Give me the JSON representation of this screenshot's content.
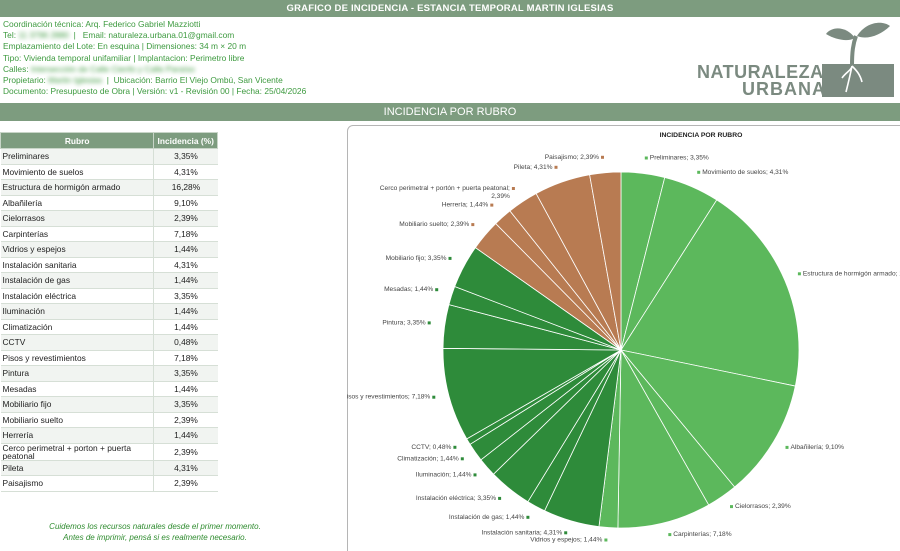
{
  "header": {
    "title": "GRAFICO DE INCIDENCIA - ESTANCIA TEMPORAL MARTIN IGLESIAS",
    "section_title": "INCIDENCIA POR RUBRO"
  },
  "info": {
    "coordinacion": "Coordinación técnica: Arq. Federico Gabriel Mazziotti",
    "tel_label": "Tel:",
    "tel_value": "11 3796 2880",
    "email": "Email: naturaleza.urbana.01@gmail.com",
    "emplazamiento": "Emplazamiento del Lote: En esquina  |  Dimensiones: 34 m × 20 m",
    "tipo": "Tipo: Vivienda temporal unifamiliar  |  Implantacion: Perimetro libre",
    "calles_label": "Calles:",
    "calles_value": "Intersección de Calle Cienfo y Calle Paraíso",
    "propietario_label": "Propietario:",
    "propietario_value": "Martin Iglesias",
    "ubicacion": "Ubicación: Barrio El Viejo Ombú, San Vicente",
    "documento": "Documento: Presupuesto de Obra   |   Versión: v1 - Revisión 00   |   Fecha: 25/04/2026"
  },
  "logo": {
    "line1": "NATURALEZA",
    "line2": "URBANA"
  },
  "table": {
    "headers": [
      "Rubro",
      "Incidencia (%)"
    ],
    "rows": [
      [
        "Preliminares",
        "3,35%"
      ],
      [
        "Movimiento de suelos",
        "4,31%"
      ],
      [
        "Estructura de hormigón armado",
        "16,28%"
      ],
      [
        "Albañilería",
        "9,10%"
      ],
      [
        "Cielorrasos",
        "2,39%"
      ],
      [
        "Carpinterías",
        "7,18%"
      ],
      [
        "Vidrios y espejos",
        "1,44%"
      ],
      [
        "Instalación sanitaria",
        "4,31%"
      ],
      [
        "Instalación de gas",
        "1,44%"
      ],
      [
        "Instalación eléctrica",
        "3,35%"
      ],
      [
        "Iluminación",
        "1,44%"
      ],
      [
        "Climatización",
        "1,44%"
      ],
      [
        "CCTV",
        "0,48%"
      ],
      [
        "Pisos y revestimientos",
        "7,18%"
      ],
      [
        "Pintura",
        "3,35%"
      ],
      [
        "Mesadas",
        "1,44%"
      ],
      [
        "Mobiliario fijo",
        "3,35%"
      ],
      [
        "Mobiliario suelto",
        "2,39%"
      ],
      [
        "Herrería",
        "1,44%"
      ],
      [
        "Cerco perimetral + porton + puerta peatonal",
        "2,39%"
      ],
      [
        "Pileta",
        "4,31%"
      ],
      [
        "Paisajismo",
        "2,39%"
      ]
    ]
  },
  "footer": {
    "line1": "Cuidemos los recursos naturales desde el primer momento.",
    "line2": "Antes de imprimir, pensá si es realmente necesario."
  },
  "colors": {
    "header_bar": "#7d9c7f",
    "light_green": "#5cb85c",
    "dark_green": "#2e8b3a",
    "brown": "#b87b52",
    "text_green": "#3d9a3f"
  },
  "chart_data": {
    "type": "pie",
    "title": "INCIDENCIA POR RUBRO",
    "slices": [
      {
        "label": "Preliminares",
        "value": 3.35,
        "text": "Preliminares; 3,35%",
        "group": "light"
      },
      {
        "label": "Movimiento de suelos",
        "value": 4.31,
        "text": "Movimiento de suelos; 4,31%",
        "group": "light"
      },
      {
        "label": "Estructura de hormigón armado",
        "value": 16.28,
        "text": "Estructura de hormigón armado; 16,28%",
        "group": "light"
      },
      {
        "label": "Albañilería",
        "value": 9.1,
        "text": "Albañilería; 9,10%",
        "group": "light"
      },
      {
        "label": "Cielorrasos",
        "value": 2.39,
        "text": "Cielorrasos; 2,39%",
        "group": "light"
      },
      {
        "label": "Carpinterías",
        "value": 7.18,
        "text": "Carpinterías; 7,18%",
        "group": "light"
      },
      {
        "label": "Vidrios y espejos",
        "value": 1.44,
        "text": "Vidrios y espejos; 1,44%",
        "group": "light"
      },
      {
        "label": "Instalación sanitaria",
        "value": 4.31,
        "text": "Instalación sanitaria; 4,31%",
        "group": "dark"
      },
      {
        "label": "Instalación de gas",
        "value": 1.44,
        "text": "Instalación de gas; 1,44%",
        "group": "dark"
      },
      {
        "label": "Instalación eléctrica",
        "value": 3.35,
        "text": "Instalación eléctrica; 3,35%",
        "group": "dark"
      },
      {
        "label": "Iluminación",
        "value": 1.44,
        "text": "Iluminación; 1,44%",
        "group": "dark"
      },
      {
        "label": "Climatización",
        "value": 1.44,
        "text": "Climatización; 1,44%",
        "group": "dark"
      },
      {
        "label": "CCTV",
        "value": 0.48,
        "text": "CCTV; 0,48%",
        "group": "dark"
      },
      {
        "label": "Pisos y revestimientos",
        "value": 7.18,
        "text": "Pisos y revestimientos; 7,18%",
        "group": "dark"
      },
      {
        "label": "Pintura",
        "value": 3.35,
        "text": "Pintura; 3,35%",
        "group": "dark"
      },
      {
        "label": "Mesadas",
        "value": 1.44,
        "text": "Mesadas; 1,44%",
        "group": "dark"
      },
      {
        "label": "Mobiliario fijo",
        "value": 3.35,
        "text": "Mobiliario fijo; 3,35%",
        "group": "dark"
      },
      {
        "label": "Mobiliario suelto",
        "value": 2.39,
        "text": "Mobiliario suelto; 2,39%",
        "group": "brown"
      },
      {
        "label": "Herrería",
        "value": 1.44,
        "text": "Herrería; 1,44%",
        "group": "brown"
      },
      {
        "label": "Cerco perimetral + portón + puerta peatonal",
        "value": 2.39,
        "text": "Cerco perimetral + portón + puerta peatonal;|2,39%",
        "group": "brown"
      },
      {
        "label": "Pileta",
        "value": 4.31,
        "text": "Pileta; 4,31%",
        "group": "brown"
      },
      {
        "label": "Paisajismo",
        "value": 2.39,
        "text": "Paisajismo; 2,39%",
        "group": "brown"
      }
    ]
  }
}
